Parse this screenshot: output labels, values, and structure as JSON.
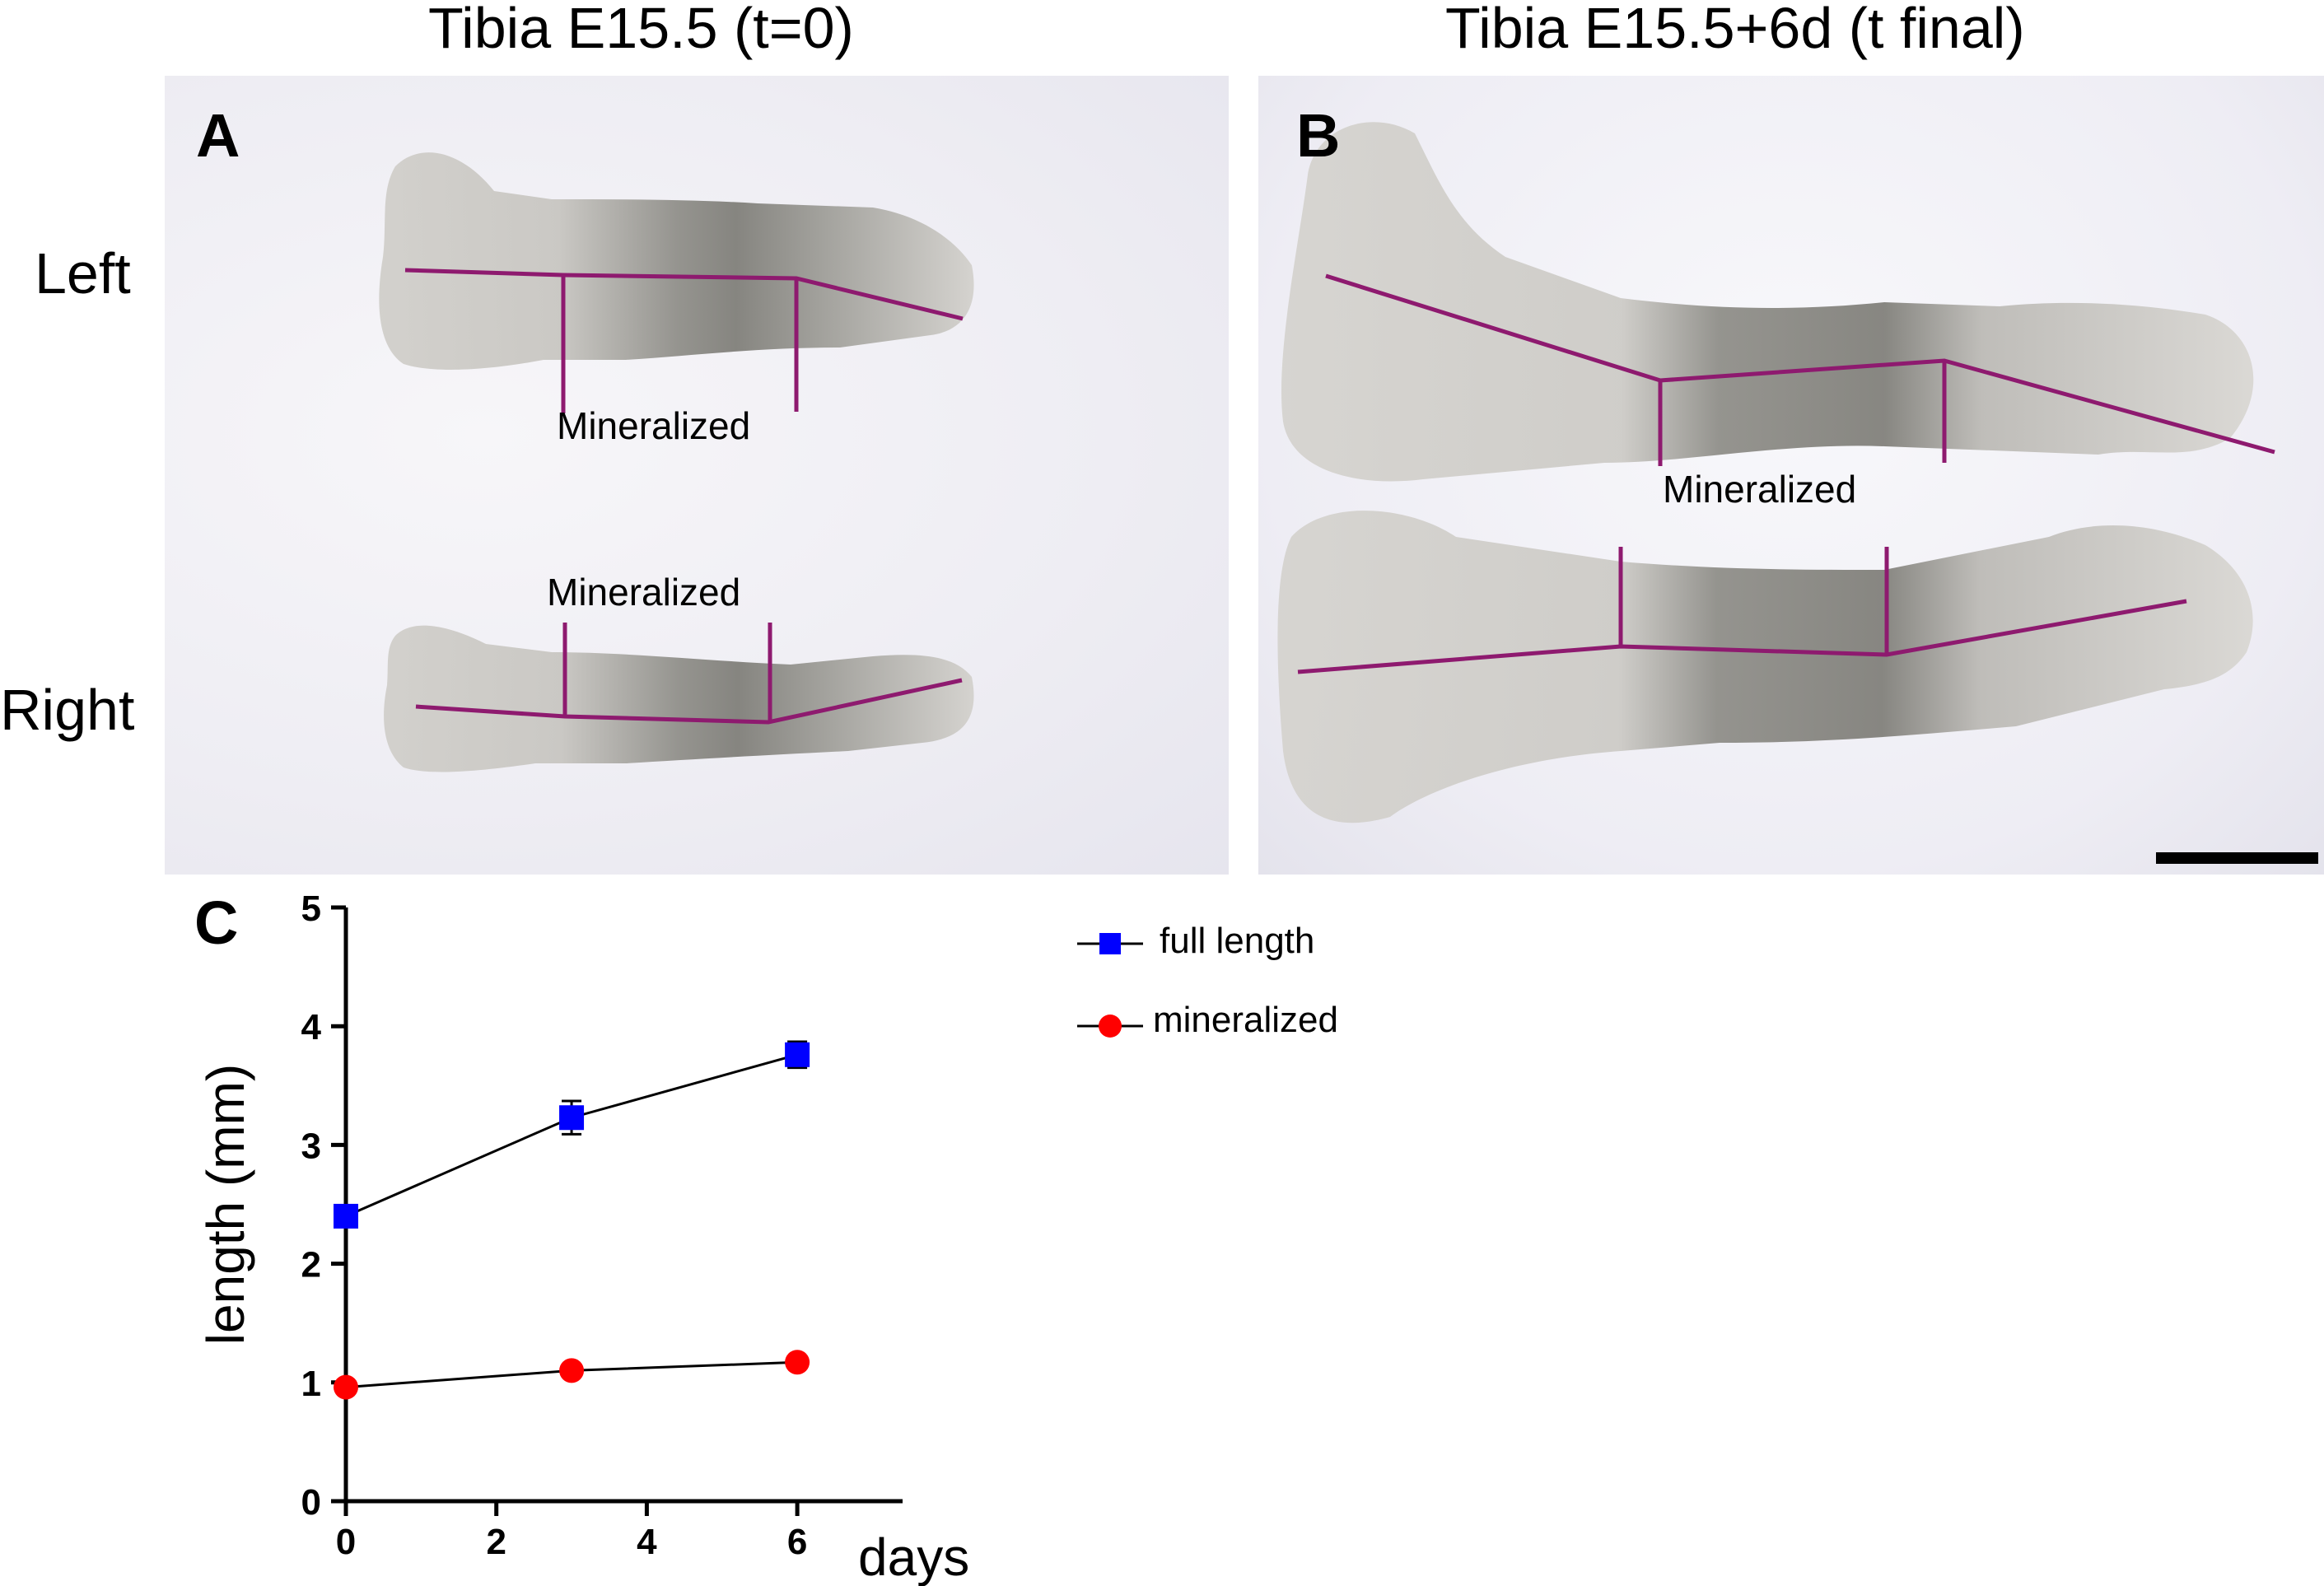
{
  "titles": {
    "left": "Tibia E15.5 (t=0)",
    "right": "Tibia E15.5+6d (t final)"
  },
  "panel_letters": {
    "a": "A",
    "b": "B",
    "c": "C"
  },
  "side_labels": {
    "left": "Left",
    "right": "Right"
  },
  "annotations": {
    "a_left": "Mineralized",
    "a_right": "Mineralized",
    "b_top": "Mineralized"
  },
  "colors": {
    "measurement_line": "#8e1a6f",
    "full_length": "#0000ff",
    "mineralized": "#ff0000",
    "bone_tissue": "#c9c7c2",
    "mineralized_tissue": "#6f6e68"
  },
  "chart_data": {
    "type": "line",
    "xlabel": "days",
    "ylabel": "length (mm)",
    "xlim": [
      0,
      7.4
    ],
    "ylim": [
      0,
      5
    ],
    "xticks": [
      0,
      2,
      4,
      6
    ],
    "yticks": [
      0,
      1,
      2,
      3,
      4,
      5
    ],
    "grid": false,
    "legend_position": "right",
    "series": [
      {
        "name": "full length",
        "marker": "square",
        "color": "#0000ff",
        "x": [
          0,
          3,
          6
        ],
        "y": [
          2.4,
          3.23,
          3.76
        ],
        "error": [
          0.05,
          0.14,
          0.11
        ]
      },
      {
        "name": "mineralized",
        "marker": "circle",
        "color": "#ff0000",
        "x": [
          0,
          3,
          6
        ],
        "y": [
          0.96,
          1.1,
          1.17
        ],
        "error": [
          0.02,
          0.03,
          0.03
        ]
      }
    ]
  }
}
